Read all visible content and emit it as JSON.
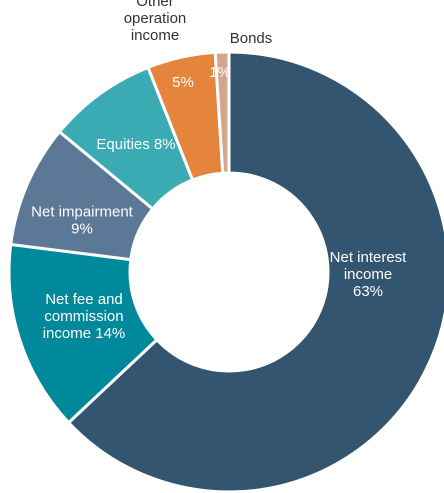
{
  "chart_data": {
    "type": "pie",
    "donut": true,
    "categories": [
      "Net interest income",
      "Net fee and commission income",
      "Net impairment",
      "Equities",
      "Other operation income",
      "Bonds"
    ],
    "values": [
      63,
      14,
      9,
      8,
      5,
      1
    ],
    "colors": [
      "#34556f",
      "#00899b",
      "#5b7896",
      "#3aaab3",
      "#e5843d",
      "#d3a58c"
    ],
    "labels": [
      {
        "lines": [
          "Net interest",
          "income",
          "63%"
        ],
        "color": "#ffffff"
      },
      {
        "lines": [
          "Net fee and",
          "commission",
          "income 14%"
        ],
        "color": "#ffffff"
      },
      {
        "lines": [
          "Net impairment",
          "9%"
        ],
        "color": "#ffffff"
      },
      {
        "lines": [
          "Equities 8%"
        ],
        "color": "#ffffff"
      },
      {
        "lines": [
          "5%"
        ],
        "color": "#ffffff"
      },
      {
        "lines": [
          "1%"
        ],
        "color": "#ffffff"
      }
    ],
    "outside_labels": [
      {
        "lines": [
          "Other",
          "operation",
          "income"
        ],
        "color": "#333333"
      },
      {
        "lines": [
          "Bonds"
        ],
        "color": "#333333"
      }
    ]
  }
}
